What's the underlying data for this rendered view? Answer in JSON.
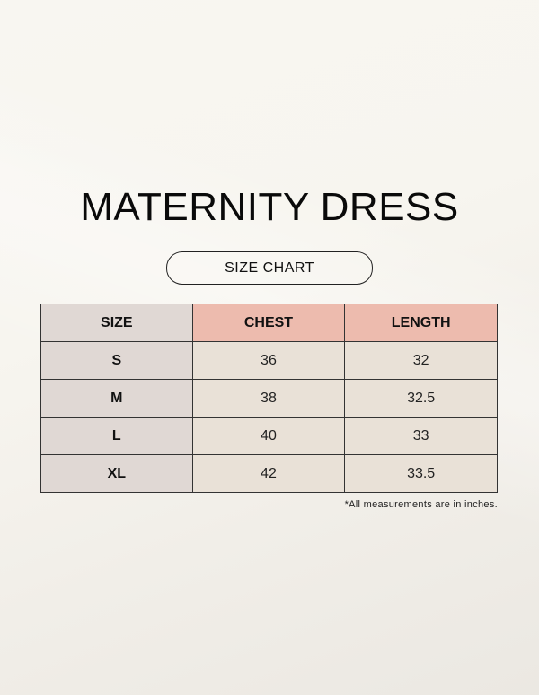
{
  "title": "MATERNITY DRESS",
  "subtitle": "SIZE CHART",
  "table": {
    "headers": [
      "SIZE",
      "CHEST",
      "LENGTH"
    ],
    "rows": [
      {
        "size": "S",
        "chest": "36",
        "length": "32"
      },
      {
        "size": "M",
        "chest": "38",
        "length": "32.5"
      },
      {
        "size": "L",
        "chest": "40",
        "length": "33"
      },
      {
        "size": "XL",
        "chest": "42",
        "length": "33.5"
      }
    ]
  },
  "note": "*All measurements are in inches.",
  "colors": {
    "header_size_bg": "#e0d8d4",
    "header_accent_bg": "#edbbae",
    "cell_bg": "#e9e1d7",
    "background": "#f7f5ef"
  }
}
